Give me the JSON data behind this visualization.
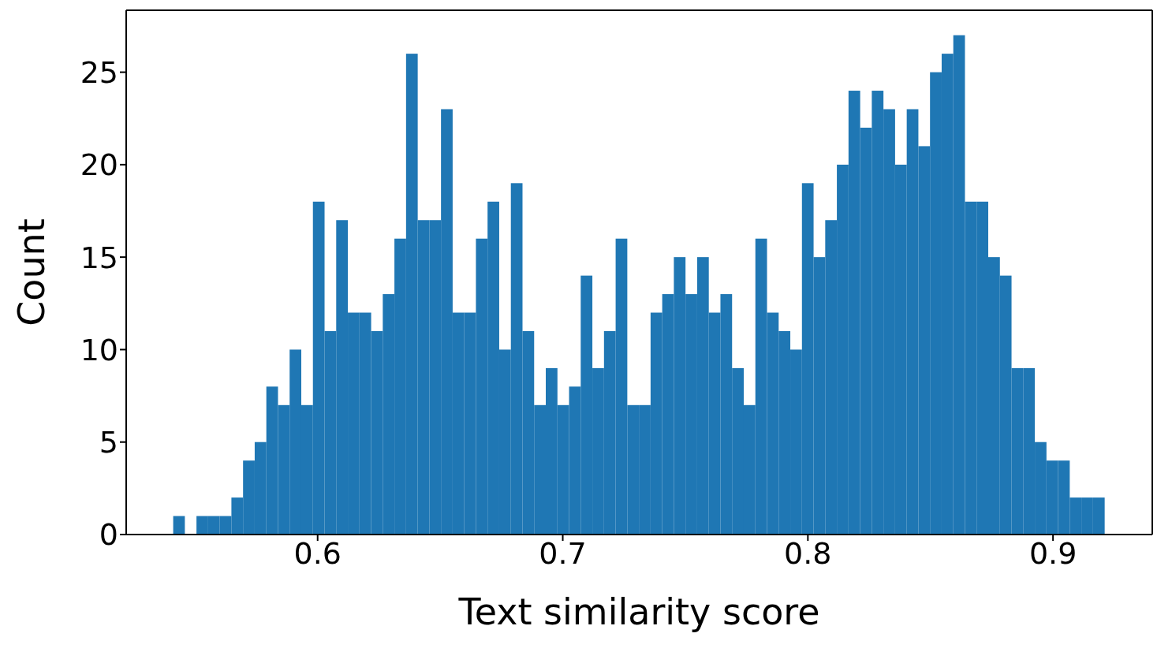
{
  "chart_data": {
    "type": "histogram",
    "xlabel": "Text similarity score",
    "ylabel": "Count",
    "color": "#1f77b4",
    "bins": [
      0.5412,
      0.54595,
      0.5507,
      0.55545,
      0.5602,
      0.56495,
      0.5697,
      0.57445,
      0.5792,
      0.58395,
      0.5887,
      0.59345,
      0.5982,
      0.60295,
      0.6077,
      0.61245,
      0.6172,
      0.62195,
      0.6267,
      0.63145,
      0.6362,
      0.64095,
      0.6457,
      0.65045,
      0.6552,
      0.65995,
      0.6647,
      0.66945,
      0.6742,
      0.67895,
      0.6837,
      0.68845,
      0.6932,
      0.69795,
      0.7027,
      0.70745,
      0.7122,
      0.71695,
      0.7217,
      0.72645,
      0.7312,
      0.73595,
      0.7407,
      0.74545,
      0.7502,
      0.75495,
      0.7597,
      0.76445,
      0.7692,
      0.77395,
      0.7787,
      0.78345,
      0.7882,
      0.79295,
      0.7977,
      0.80245,
      0.8072,
      0.81195,
      0.8167,
      0.82145,
      0.8262,
      0.83095,
      0.8357,
      0.84045,
      0.8452,
      0.84995,
      0.8547,
      0.85945,
      0.8642,
      0.86895,
      0.8737,
      0.87845,
      0.8832,
      0.88795,
      0.8927,
      0.89745,
      0.9022,
      0.90695,
      0.9117,
      0.91645,
      0.9212
    ],
    "values": [
      1,
      0,
      1,
      1,
      1,
      2,
      4,
      5,
      8,
      7,
      10,
      7,
      18,
      11,
      17,
      12,
      12,
      11,
      13,
      16,
      26,
      17,
      17,
      23,
      12,
      12,
      16,
      18,
      10,
      19,
      11,
      7,
      9,
      7,
      8,
      14,
      9,
      11,
      16,
      7,
      7,
      12,
      13,
      15,
      13,
      15,
      12,
      13,
      9,
      7,
      16,
      12,
      11,
      10,
      19,
      15,
      17,
      20,
      24,
      22,
      24,
      23,
      20,
      23,
      21,
      25,
      26,
      27,
      18,
      18,
      15,
      14,
      9,
      9,
      5,
      4,
      4,
      2,
      2,
      2
    ],
    "xlim": [
      0.5219,
      0.9405
    ],
    "xticks": [
      0.6,
      0.7,
      0.8,
      0.9
    ],
    "ylim": [
      0,
      28.35
    ],
    "yticks": [
      0,
      5,
      10,
      15,
      20,
      25
    ],
    "grid": false
  }
}
